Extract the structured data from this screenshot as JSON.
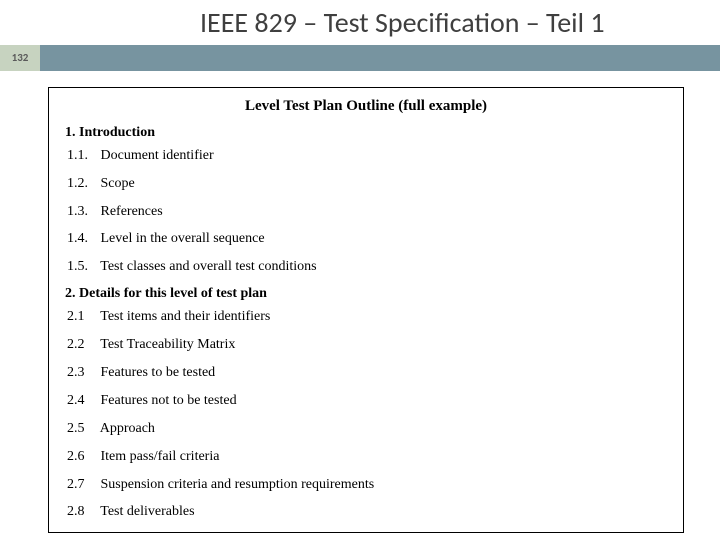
{
  "slide": {
    "title": "IEEE 829 – Test Specification – Teil 1",
    "page_number": "132",
    "colors": {
      "page_box_bg": "#c7d3c0",
      "bar_bg": "#7794a0",
      "title_color": "#3f3f3f",
      "frame_border": "#000000",
      "text_color": "#000000"
    }
  },
  "document": {
    "title": "Level Test Plan Outline (full example)",
    "sections": [
      {
        "heading_num": "1.",
        "heading_text": "Introduction",
        "items": [
          {
            "num": "1.1.",
            "text": "Document identifier"
          },
          {
            "num": "1.2.",
            "text": "Scope"
          },
          {
            "num": "1.3.",
            "text": "References"
          },
          {
            "num": "1.4.",
            "text": "Level in the overall sequence"
          },
          {
            "num": "1.5.",
            "text": "Test classes and overall test conditions"
          }
        ]
      },
      {
        "heading_num": "2.",
        "heading_text": "Details for this level of test plan",
        "items": [
          {
            "num": "2.1",
            "text": "Test items and their identifiers"
          },
          {
            "num": "2.2",
            "text": "Test Traceability Matrix"
          },
          {
            "num": "2.3",
            "text": "Features to be tested"
          },
          {
            "num": "2.4",
            "text": "Features not to be tested"
          },
          {
            "num": "2.5",
            "text": "Approach"
          },
          {
            "num": "2.6",
            "text": "Item pass/fail criteria"
          },
          {
            "num": "2.7",
            "text": "Suspension criteria and resumption requirements"
          },
          {
            "num": "2.8",
            "text": "Test deliverables"
          }
        ]
      }
    ]
  }
}
